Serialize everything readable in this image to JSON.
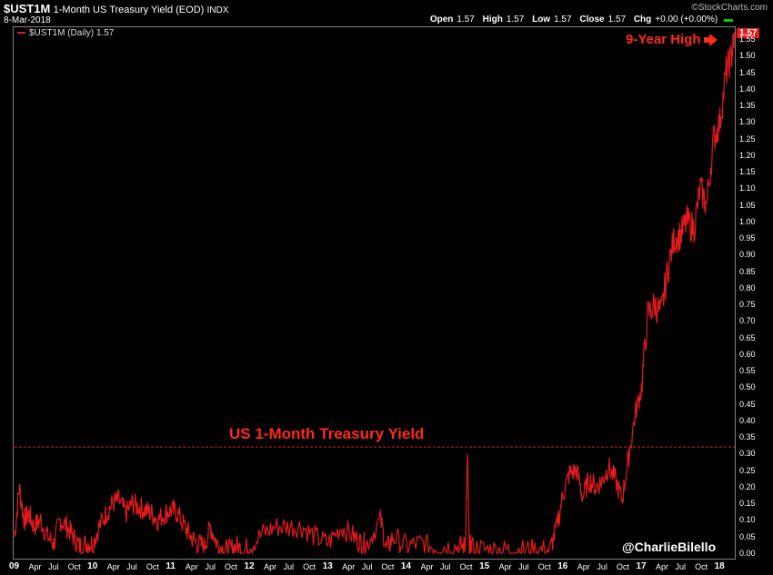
{
  "header": {
    "symbol": "$UST1M",
    "description": "1-Month US Treasury Yield (EOD)",
    "exchange": "INDX",
    "date": "8-Mar-2018",
    "source": "©StockCharts.com",
    "ohlc": {
      "open_label": "Open",
      "open": "1.57",
      "high_label": "High",
      "high": "1.57",
      "low_label": "Low",
      "low": "1.57",
      "close_label": "Close",
      "close": "1.57",
      "chg_label": "Chg",
      "chg": "+0.00 (+0.00%)"
    }
  },
  "legend_text": "$UST1M (Daily) 1.57",
  "last_value": "1.57",
  "annotations": {
    "high": "9-Year High",
    "title": "US 1-Month Treasury Yield",
    "credit": "@CharlieBilello"
  },
  "colors": {
    "series": "#e31a1c",
    "annotation": "#ff2a1a",
    "background": "#000000",
    "frame": "#808080"
  },
  "chart_data": {
    "type": "line",
    "title": "1-Month US Treasury Yield (EOD)",
    "xlabel": "",
    "ylabel": "",
    "ylim": [
      0,
      1.57
    ],
    "y_ticks": [
      "1.55",
      "1.50",
      "1.45",
      "1.40",
      "1.35",
      "1.30",
      "1.25",
      "1.20",
      "1.15",
      "1.10",
      "1.05",
      "1.00",
      "0.95",
      "0.90",
      "0.85",
      "0.80",
      "0.75",
      "0.70",
      "0.65",
      "0.60",
      "0.55",
      "0.50",
      "0.45",
      "0.40",
      "0.35",
      "0.30",
      "0.25",
      "0.20",
      "0.15",
      "0.10",
      "0.05",
      "0.00"
    ],
    "x_ticks": [
      {
        "label": "09",
        "t": 0,
        "bold": true
      },
      {
        "label": "Apr",
        "t": 0.25
      },
      {
        "label": "Jul",
        "t": 0.5
      },
      {
        "label": "Oct",
        "t": 0.75
      },
      {
        "label": "10",
        "t": 1,
        "bold": true
      },
      {
        "label": "Apr",
        "t": 1.25
      },
      {
        "label": "Jul",
        "t": 1.5
      },
      {
        "label": "Oct",
        "t": 1.75
      },
      {
        "label": "11",
        "t": 2,
        "bold": true
      },
      {
        "label": "Apr",
        "t": 2.25
      },
      {
        "label": "Jul",
        "t": 2.5
      },
      {
        "label": "Oct",
        "t": 2.75
      },
      {
        "label": "12",
        "t": 3,
        "bold": true
      },
      {
        "label": "Apr",
        "t": 3.25
      },
      {
        "label": "Jul",
        "t": 3.5
      },
      {
        "label": "Oct",
        "t": 3.75
      },
      {
        "label": "13",
        "t": 4,
        "bold": true
      },
      {
        "label": "Apr",
        "t": 4.25
      },
      {
        "label": "Jul",
        "t": 4.5
      },
      {
        "label": "Oct",
        "t": 4.75
      },
      {
        "label": "14",
        "t": 5,
        "bold": true
      },
      {
        "label": "Apr",
        "t": 5.25
      },
      {
        "label": "Jul",
        "t": 5.5
      },
      {
        "label": "Oct",
        "t": 5.75
      },
      {
        "label": "15",
        "t": 6,
        "bold": true
      },
      {
        "label": "Apr",
        "t": 6.25
      },
      {
        "label": "Jul",
        "t": 6.5
      },
      {
        "label": "Oct",
        "t": 6.75
      },
      {
        "label": "16",
        "t": 7,
        "bold": true
      },
      {
        "label": "Apr",
        "t": 7.25
      },
      {
        "label": "Jul",
        "t": 7.5
      },
      {
        "label": "Oct",
        "t": 7.75
      },
      {
        "label": "17",
        "t": 8,
        "bold": true
      },
      {
        "label": "Apr",
        "t": 8.25
      },
      {
        "label": "Jul",
        "t": 8.5
      },
      {
        "label": "Oct",
        "t": 8.75
      },
      {
        "label": "18",
        "t": 9,
        "bold": true
      }
    ],
    "reference_line": {
      "y": 0.32,
      "style": "dashed"
    },
    "series": [
      {
        "name": "$UST1M (Daily)",
        "x": [
          2009.0,
          2009.06,
          2009.12,
          2009.18,
          2009.25,
          2009.33,
          2009.42,
          2009.5,
          2009.58,
          2009.67,
          2009.75,
          2009.83,
          2009.92,
          2010.0,
          2010.08,
          2010.17,
          2010.25,
          2010.33,
          2010.42,
          2010.5,
          2010.58,
          2010.67,
          2010.75,
          2010.83,
          2010.92,
          2011.0,
          2011.08,
          2011.17,
          2011.25,
          2011.33,
          2011.42,
          2011.5,
          2011.58,
          2011.67,
          2011.75,
          2011.83,
          2011.92,
          2012.0,
          2012.17,
          2012.33,
          2012.5,
          2012.67,
          2012.83,
          2013.0,
          2013.17,
          2013.33,
          2013.42,
          2013.5,
          2013.67,
          2013.75,
          2013.83,
          2014.0,
          2014.17,
          2014.33,
          2014.5,
          2014.67,
          2014.75,
          2014.78,
          2014.8,
          2014.83,
          2015.0,
          2015.17,
          2015.33,
          2015.5,
          2015.67,
          2015.83,
          2015.92,
          2016.0,
          2016.08,
          2016.17,
          2016.25,
          2016.33,
          2016.42,
          2016.5,
          2016.58,
          2016.67,
          2016.75,
          2016.83,
          2016.92,
          2017.0,
          2017.08,
          2017.17,
          2017.25,
          2017.33,
          2017.42,
          2017.5,
          2017.58,
          2017.67,
          2017.75,
          2017.83,
          2017.92,
          2018.0,
          2018.08,
          2018.15,
          2018.19
        ],
        "y": [
          0.05,
          0.2,
          0.1,
          0.12,
          0.08,
          0.1,
          0.05,
          0.03,
          0.1,
          0.08,
          0.05,
          0.02,
          0.03,
          0.03,
          0.08,
          0.12,
          0.15,
          0.16,
          0.12,
          0.15,
          0.14,
          0.13,
          0.12,
          0.1,
          0.12,
          0.13,
          0.12,
          0.08,
          0.05,
          0.03,
          0.02,
          0.08,
          0.03,
          0.01,
          0.01,
          0.02,
          0.01,
          0.02,
          0.06,
          0.08,
          0.08,
          0.08,
          0.05,
          0.03,
          0.08,
          0.05,
          0.03,
          0.03,
          0.1,
          0.01,
          0.05,
          0.02,
          0.03,
          0.02,
          0.02,
          0.02,
          0.02,
          0.3,
          0.02,
          0.02,
          0.01,
          0.01,
          0.01,
          0.01,
          0.01,
          0.01,
          0.08,
          0.18,
          0.24,
          0.25,
          0.17,
          0.22,
          0.2,
          0.22,
          0.26,
          0.22,
          0.16,
          0.28,
          0.42,
          0.5,
          0.72,
          0.75,
          0.72,
          0.85,
          0.95,
          0.96,
          1.0,
          0.98,
          1.1,
          1.05,
          1.25,
          1.3,
          1.45,
          1.5,
          1.57
        ]
      }
    ]
  }
}
